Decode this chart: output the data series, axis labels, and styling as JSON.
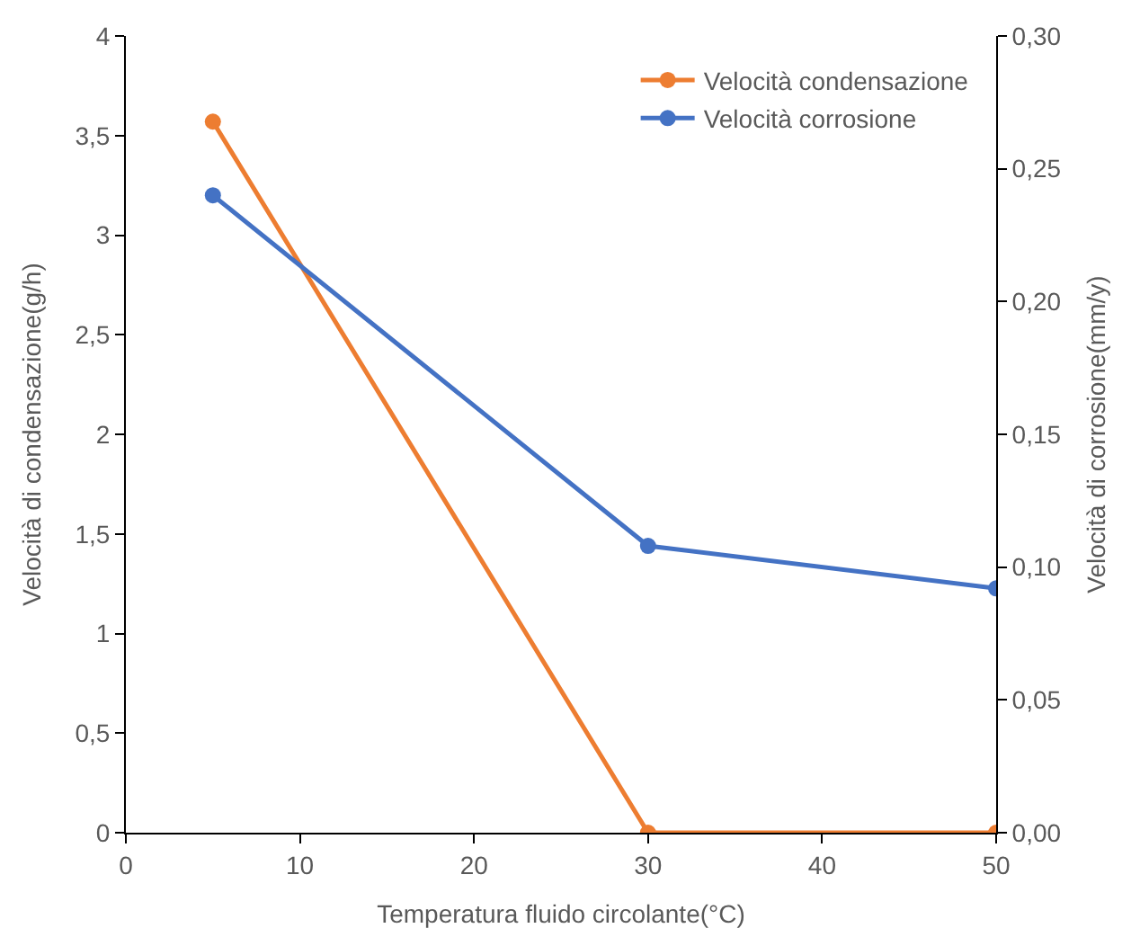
{
  "chart_data": {
    "type": "line",
    "xlabel": "Temperatura fluido circolante(°C)",
    "ylabel": "Velocità di condensazione(g/h)",
    "y2label": "Velocità di corrosione(mm/y)",
    "x": [
      5,
      30,
      50
    ],
    "series": [
      {
        "name": "Velocità condensazione",
        "color": "#ed7d31",
        "values": [
          3.57,
          0,
          0
        ]
      },
      {
        "name": "Velocità corrosione",
        "color": "#4472c4",
        "values": [
          0.24,
          0.108,
          0.092
        ],
        "axis": "y2"
      }
    ],
    "xlim": [
      0,
      50
    ],
    "xticks": [
      0,
      10,
      20,
      30,
      40,
      50
    ],
    "ylim": [
      0,
      4
    ],
    "yticks": [
      0,
      {
        "value": 0.5,
        "label": "0,5"
      },
      1,
      {
        "value": 1.5,
        "label": "1,5"
      },
      2,
      {
        "value": 2.5,
        "label": "2,5"
      },
      3,
      {
        "value": 3.5,
        "label": "3,5"
      },
      4
    ],
    "y2lim": [
      0,
      0.3
    ],
    "y2ticks": [
      {
        "value": 0,
        "label": "0,00"
      },
      {
        "value": 0.05,
        "label": "0,05"
      },
      {
        "value": 0.1,
        "label": "0,10"
      },
      {
        "value": 0.15,
        "label": "0,15"
      },
      {
        "value": 0.2,
        "label": "0,20"
      },
      {
        "value": 0.25,
        "label": "0,25"
      },
      {
        "value": 0.3,
        "label": "0,30"
      }
    ],
    "legend": "top right",
    "marker": "circle",
    "line_style": "solid"
  }
}
